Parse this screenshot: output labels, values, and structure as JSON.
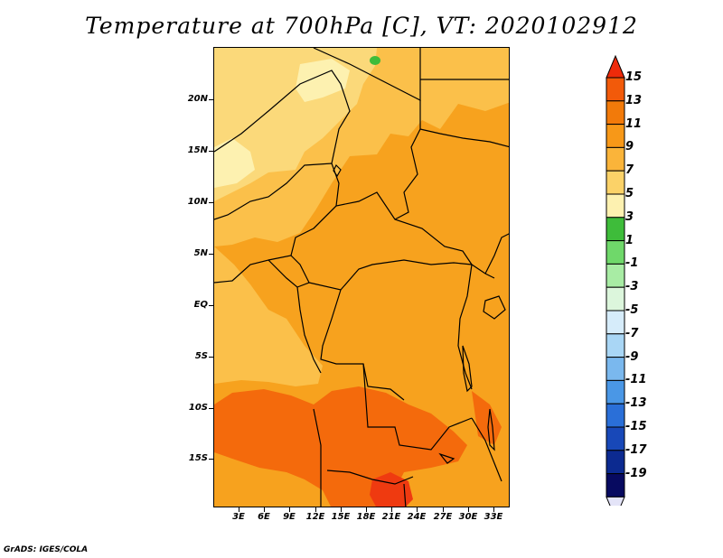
{
  "title": "Temperature at 700hPa [C], VT: 2020102912",
  "credit": "GrADS: IGES/COLA",
  "map": {
    "lat_labels": [
      "20N",
      "15N",
      "10N",
      "5N",
      "EQ",
      "5S",
      "10S",
      "15S"
    ],
    "lon_labels": [
      "3E",
      "6E",
      "9E",
      "12E",
      "15E",
      "18E",
      "21E",
      "24E",
      "27E",
      "30E",
      "33E"
    ],
    "colors": {
      "t5_7": "#fbd97a",
      "t7_9": "#fbc04a",
      "t9_11": "#f7a21e",
      "t11_13": "#f46a0c",
      "t13_15": "#ef3a10",
      "t1_3": "#3ebc3a",
      "t3_5": "#fdf1b0"
    }
  },
  "colorbar": {
    "labels": [
      "15",
      "13",
      "11",
      "9",
      "7",
      "5",
      "3",
      "1",
      "-1",
      "-3",
      "-5",
      "-7",
      "-9",
      "-11",
      "-13",
      "-15",
      "-17",
      "-19"
    ],
    "colors": [
      "#ee2a0a",
      "#f25a0a",
      "#f27a0a",
      "#f79818",
      "#fab43a",
      "#fbd268",
      "#fdf1b0",
      "#3ebc3a",
      "#6fd86a",
      "#a8eca4",
      "#dcf6dc",
      "#d6ecfa",
      "#a9d6f5",
      "#7ab8ee",
      "#4a97e6",
      "#2a6fd8",
      "#1848b8",
      "#0c2a90",
      "#070a60"
    ],
    "under_color": "#e4e4f8"
  }
}
